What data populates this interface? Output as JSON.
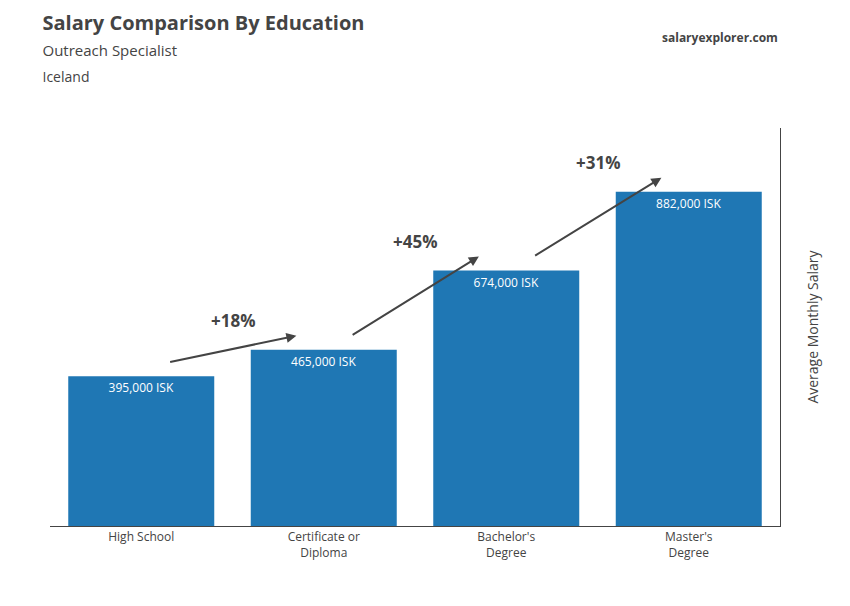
{
  "chart_data": {
    "type": "bar",
    "title": "Salary Comparison By Education",
    "subtitle": [
      "Outreach Specialist",
      "Iceland"
    ],
    "ylabel": "Average Monthly Salary",
    "categories": [
      "High School",
      "Certificate or\nDiploma",
      "Bachelor's\nDegree",
      "Master's\nDegree"
    ],
    "values": [
      395000,
      465000,
      674000,
      882000
    ],
    "value_labels": [
      "395,000 ISK",
      "465,000 ISK",
      "674,000 ISK",
      "882,000 ISK"
    ],
    "data_labels": true,
    "annotations": [
      "+18%",
      "+45%",
      "+31%",
      "salaryexplorer.com"
    ],
    "ylim": [
      0,
      1050000
    ],
    "yticks": [],
    "tick_labels": "x",
    "grid": false
  }
}
